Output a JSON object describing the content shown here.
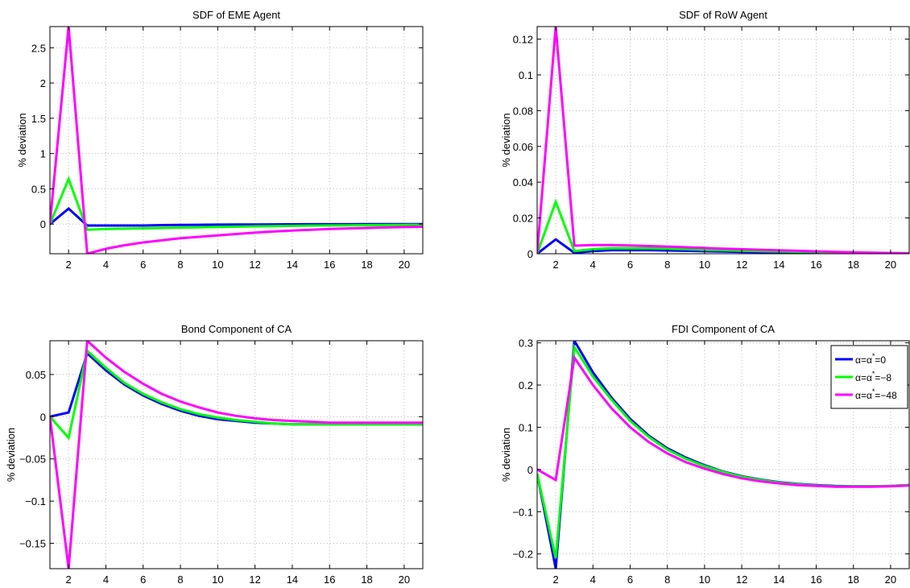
{
  "colors": {
    "alpha0": "#0000ff",
    "alpha8": "#00ff00",
    "alpha48": "#ff00ff"
  },
  "legend": {
    "placement": "top-right",
    "entries": [
      {
        "prefix": "α=α",
        "sup": "*",
        "suffix": "=0",
        "color": "#0000ff"
      },
      {
        "prefix": "α=α",
        "sup": "*",
        "suffix": "=−8",
        "color": "#00ff00"
      },
      {
        "prefix": "α=α",
        "sup": "*",
        "suffix": "=−48",
        "color": "#ff00ff"
      }
    ]
  },
  "chart_data": [
    {
      "type": "line",
      "title": "SDF of EME Agent",
      "ylabel": "% deviation",
      "xlim": [
        1,
        21
      ],
      "ylim": [
        -0.42,
        2.8
      ],
      "xticks": [
        2,
        4,
        6,
        8,
        10,
        12,
        14,
        16,
        18,
        20
      ],
      "yticks": [
        0,
        0.5,
        1,
        1.5,
        2,
        2.5
      ],
      "ytick_labels": [
        "0",
        "0.5",
        "1",
        "1.5",
        "2",
        "2.5"
      ],
      "grid": true,
      "x": [
        1,
        2,
        3,
        4,
        5,
        6,
        7,
        8,
        9,
        10,
        11,
        12,
        13,
        14,
        15,
        16,
        17,
        18,
        19,
        20,
        21
      ],
      "series": [
        {
          "color": "#0000ff",
          "values": [
            0,
            0.22,
            -0.02,
            -0.02,
            -0.02,
            -0.02,
            -0.015,
            -0.012,
            -0.01,
            -0.008,
            -0.006,
            -0.005,
            -0.004,
            -0.003,
            -0.002,
            -0.002,
            -0.002,
            -0.001,
            -0.001,
            -0.001,
            -0.001
          ]
        },
        {
          "color": "#00ff00",
          "values": [
            0,
            0.64,
            -0.08,
            -0.07,
            -0.065,
            -0.06,
            -0.055,
            -0.05,
            -0.045,
            -0.04,
            -0.036,
            -0.032,
            -0.028,
            -0.025,
            -0.022,
            -0.019,
            -0.017,
            -0.015,
            -0.013,
            -0.011,
            -0.01
          ]
        },
        {
          "color": "#ff00ff",
          "values": [
            0,
            2.8,
            -0.42,
            -0.35,
            -0.3,
            -0.26,
            -0.23,
            -0.2,
            -0.18,
            -0.16,
            -0.14,
            -0.12,
            -0.105,
            -0.092,
            -0.08,
            -0.07,
            -0.062,
            -0.055,
            -0.048,
            -0.042,
            -0.037
          ]
        }
      ]
    },
    {
      "type": "line",
      "title": "SDF of RoW Agent",
      "ylabel": "% deviation",
      "xlim": [
        1,
        21
      ],
      "ylim": [
        0,
        0.127
      ],
      "xticks": [
        2,
        4,
        6,
        8,
        10,
        12,
        14,
        16,
        18,
        20
      ],
      "yticks": [
        0,
        0.02,
        0.04,
        0.06,
        0.08,
        0.1,
        0.12
      ],
      "ytick_labels": [
        "0",
        "0.02",
        "0.04",
        "0.06",
        "0.08",
        "0.1",
        "0.12"
      ],
      "grid": true,
      "x": [
        1,
        2,
        3,
        4,
        5,
        6,
        7,
        8,
        9,
        10,
        11,
        12,
        13,
        14,
        15,
        16,
        17,
        18,
        19,
        20,
        21
      ],
      "series": [
        {
          "color": "#0000ff",
          "values": [
            0,
            0.008,
            0.0005,
            0.0015,
            0.002,
            0.002,
            0.002,
            0.0018,
            0.0016,
            0.0014,
            0.0012,
            0.001,
            0.0009,
            0.0008,
            0.0007,
            0.0006,
            0.0005,
            0.0004,
            0.0003,
            0.0002,
            0.0002
          ]
        },
        {
          "color": "#00ff00",
          "values": [
            0,
            0.029,
            0.0015,
            0.0025,
            0.003,
            0.003,
            0.003,
            0.0028,
            0.0025,
            0.0022,
            0.002,
            0.0017,
            0.0015,
            0.0013,
            0.0011,
            0.001,
            0.0008,
            0.0007,
            0.0005,
            0.0004,
            0.0003
          ]
        },
        {
          "color": "#ff00ff",
          "values": [
            0,
            0.127,
            0.0045,
            0.0048,
            0.0048,
            0.0046,
            0.0043,
            0.004,
            0.0036,
            0.0032,
            0.0028,
            0.0025,
            0.0022,
            0.0019,
            0.0016,
            0.0013,
            0.001,
            0.0008,
            0.0006,
            0.0004,
            0.0002
          ]
        }
      ]
    },
    {
      "type": "line",
      "title": "Bond Component of CA",
      "ylabel": "% deviation",
      "xlim": [
        1,
        21
      ],
      "ylim": [
        -0.18,
        0.09
      ],
      "xticks": [
        2,
        4,
        6,
        8,
        10,
        12,
        14,
        16,
        18,
        20
      ],
      "yticks": [
        -0.15,
        -0.1,
        -0.05,
        0,
        0.05
      ],
      "ytick_labels": [
        "−0.15",
        "−0.1",
        "−0.05",
        "0",
        "0.05"
      ],
      "grid": true,
      "x": [
        1,
        2,
        3,
        4,
        5,
        6,
        7,
        8,
        9,
        10,
        11,
        12,
        13,
        14,
        15,
        16,
        17,
        18,
        19,
        20,
        21
      ],
      "series": [
        {
          "color": "#0000ff",
          "values": [
            0,
            0.005,
            0.075,
            0.055,
            0.038,
            0.025,
            0.015,
            0.007,
            0.001,
            -0.003,
            -0.005,
            -0.007,
            -0.008,
            -0.009,
            -0.009,
            -0.009,
            -0.009,
            -0.009,
            -0.009,
            -0.009,
            -0.009
          ]
        },
        {
          "color": "#00ff00",
          "values": [
            0,
            -0.025,
            0.078,
            0.058,
            0.04,
            0.027,
            0.017,
            0.009,
            0.003,
            -0.001,
            -0.004,
            -0.006,
            -0.008,
            -0.009,
            -0.009,
            -0.009,
            -0.009,
            -0.009,
            -0.009,
            -0.009,
            -0.009
          ]
        },
        {
          "color": "#ff00ff",
          "values": [
            0,
            -0.18,
            0.09,
            0.07,
            0.053,
            0.039,
            0.027,
            0.018,
            0.011,
            0.005,
            0.001,
            -0.002,
            -0.004,
            -0.005,
            -0.006,
            -0.007,
            -0.007,
            -0.007,
            -0.007,
            -0.007,
            -0.007
          ]
        }
      ]
    },
    {
      "type": "line",
      "title": "FDI Component of CA",
      "ylabel": "% deviation",
      "xlim": [
        1,
        21
      ],
      "ylim": [
        -0.235,
        0.305
      ],
      "xticks": [
        2,
        4,
        6,
        8,
        10,
        12,
        14,
        16,
        18,
        20
      ],
      "yticks": [
        -0.2,
        -0.1,
        0,
        0.1,
        0.2,
        0.3
      ],
      "ytick_labels": [
        "−0.2",
        "−0.1",
        "0",
        "0.1",
        "0.2",
        "0.3"
      ],
      "grid": true,
      "x": [
        1,
        2,
        3,
        4,
        5,
        6,
        7,
        8,
        9,
        10,
        11,
        12,
        13,
        14,
        15,
        16,
        17,
        18,
        19,
        20,
        21
      ],
      "series": [
        {
          "color": "#0000ff",
          "values": [
            -0.01,
            -0.235,
            0.305,
            0.23,
            0.17,
            0.12,
            0.08,
            0.05,
            0.028,
            0.01,
            -0.005,
            -0.016,
            -0.024,
            -0.03,
            -0.034,
            -0.037,
            -0.039,
            -0.04,
            -0.04,
            -0.039,
            -0.037
          ]
        },
        {
          "color": "#00ff00",
          "values": [
            -0.01,
            -0.21,
            0.29,
            0.22,
            0.165,
            0.115,
            0.077,
            0.047,
            0.025,
            0.008,
            -0.006,
            -0.017,
            -0.025,
            -0.031,
            -0.035,
            -0.038,
            -0.04,
            -0.04,
            -0.04,
            -0.039,
            -0.037
          ]
        },
        {
          "color": "#ff00ff",
          "values": [
            0,
            -0.025,
            0.265,
            0.2,
            0.145,
            0.1,
            0.065,
            0.038,
            0.017,
            0.002,
            -0.011,
            -0.021,
            -0.028,
            -0.033,
            -0.037,
            -0.039,
            -0.041,
            -0.041,
            -0.041,
            -0.04,
            -0.038
          ]
        }
      ]
    }
  ]
}
